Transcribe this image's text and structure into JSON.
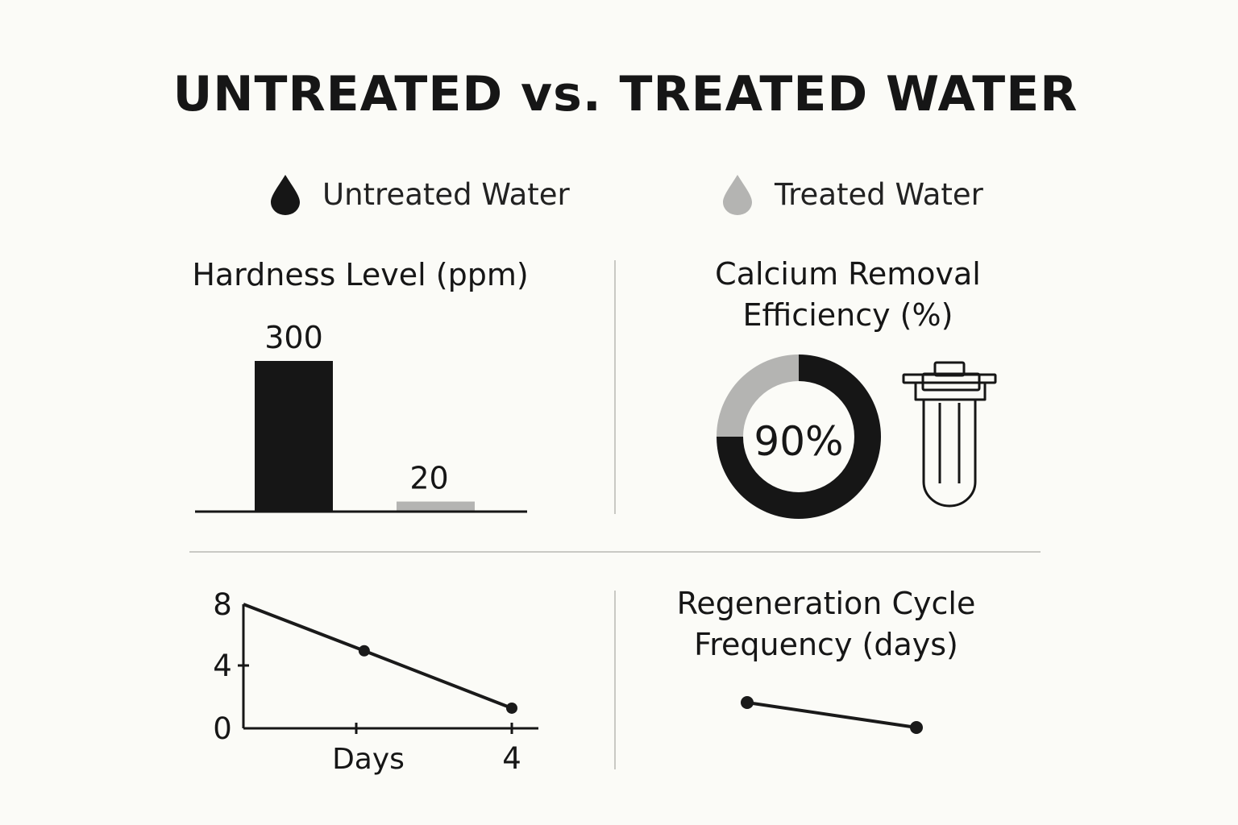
{
  "title": "UNTREATED vs. TREATED WATER",
  "legend": [
    {
      "label": "Untreated Water",
      "color": "#161616",
      "icon": "water-drop-icon"
    },
    {
      "label": "Treated Water",
      "color": "#b4b4b2",
      "icon": "water-drop-icon"
    }
  ],
  "chart_data": [
    {
      "type": "bar",
      "title": "Hardness Level (ppm)",
      "categories": [
        "Untreated Water",
        "Treated Water"
      ],
      "values": [
        300,
        20
      ],
      "data_labels": [
        "300",
        "20"
      ],
      "colors": [
        "#161616",
        "#b4b4b2"
      ],
      "ylim": [
        0,
        300
      ]
    },
    {
      "type": "pie",
      "title_lines": [
        "Calcium Removal",
        "Efficiency (%)"
      ],
      "center_label": "90%",
      "slices": [
        {
          "label": "Treated Water",
          "value": 25,
          "color": "#b4b4b2"
        },
        {
          "label": "Untreated Water",
          "value": 75,
          "color": "#161616"
        }
      ],
      "icon": "water-filter-icon"
    },
    {
      "type": "line",
      "xlabel": "Days",
      "x_tick_labels": [
        "",
        "4"
      ],
      "y_tick_labels": [
        "8",
        "4",
        "0"
      ],
      "ylim": [
        0,
        8
      ],
      "xlim": [
        0,
        4
      ],
      "points": [
        {
          "x": 0,
          "y": 8
        },
        {
          "x": 1.8,
          "y": 5
        },
        {
          "x": 4,
          "y": 1.3
        }
      ],
      "color": "#1a1a1a"
    },
    {
      "type": "line",
      "title_lines": [
        "Regeneration Cycle",
        "Frequency (days)"
      ],
      "points": [
        {
          "x": 0,
          "y": 1.5
        },
        {
          "x": 1,
          "y": 0
        }
      ],
      "color": "#1a1a1a"
    }
  ]
}
